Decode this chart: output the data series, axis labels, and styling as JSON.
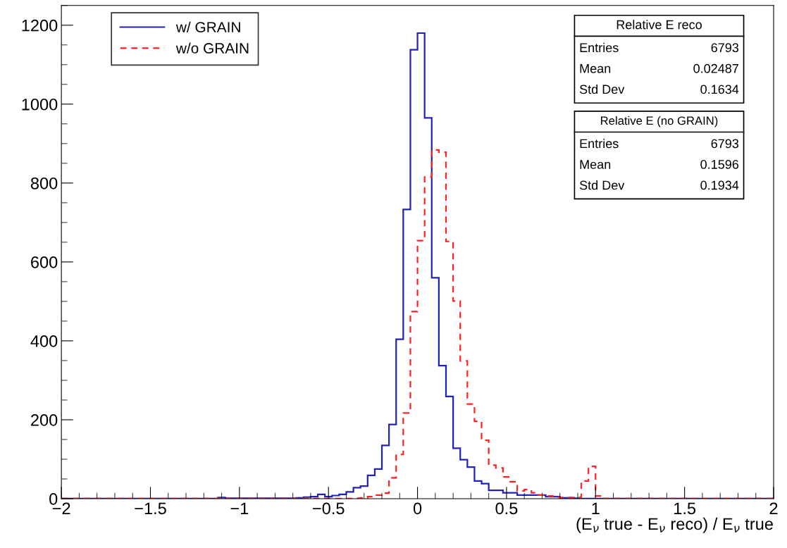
{
  "chart_data": {
    "type": "histogram",
    "xlabel": "(E$_{ν}$ true - E$_{ν}$ reco) / E$_{ν}$ true",
    "bins": [
      -2.0,
      -1.96,
      -1.92,
      -1.88,
      -1.84,
      -1.8,
      -1.76,
      -1.72,
      -1.68,
      -1.64,
      -1.6,
      -1.56,
      -1.52,
      -1.48,
      -1.44,
      -1.4,
      -1.36,
      -1.32,
      -1.28,
      -1.24,
      -1.2,
      -1.16,
      -1.12,
      -1.08,
      -1.04,
      -1.0,
      -0.96,
      -0.92,
      -0.88,
      -0.84,
      -0.8,
      -0.76,
      -0.72,
      -0.68,
      -0.64,
      -0.6,
      -0.56,
      -0.52,
      -0.48,
      -0.44,
      -0.4,
      -0.36,
      -0.32,
      -0.28,
      -0.24,
      -0.2,
      -0.16,
      -0.12,
      -0.08,
      -0.04,
      0.0,
      0.04,
      0.08,
      0.12,
      0.16,
      0.2,
      0.24,
      0.28,
      0.32,
      0.36,
      0.4,
      0.44,
      0.48,
      0.52,
      0.56,
      0.6,
      0.64,
      0.68,
      0.72,
      0.76,
      0.8,
      0.84,
      0.88,
      0.92,
      0.96,
      1.0,
      1.04,
      1.08,
      1.12,
      1.16,
      1.2,
      1.24,
      1.28,
      1.32,
      1.36,
      1.4,
      1.44,
      1.48,
      1.52,
      1.56,
      1.6,
      1.64,
      1.68,
      1.72,
      1.76,
      1.8,
      1.84,
      1.88,
      1.92,
      1.96,
      2.0
    ],
    "series": [
      {
        "name": "w/ GRAIN",
        "color": "#2222bb",
        "line_style": "solid",
        "values": [
          0,
          0,
          0,
          0,
          0,
          0,
          0,
          0,
          0,
          0,
          0,
          0,
          0,
          0,
          0,
          0,
          0,
          0,
          0,
          0,
          0,
          0,
          3,
          1,
          1,
          1,
          1,
          1,
          1,
          1,
          1,
          1,
          1,
          2,
          4,
          5,
          11,
          5,
          8,
          11,
          17,
          28,
          32,
          59,
          75,
          135,
          188,
          404,
          733,
          1138,
          1180,
          965,
          560,
          337,
          259,
          128,
          99,
          80,
          45,
          38,
          21,
          21,
          15,
          15,
          9,
          9,
          9,
          9,
          5,
          5,
          2,
          2,
          1,
          0,
          0,
          0,
          0,
          0,
          0,
          0,
          0,
          0,
          0,
          0,
          0,
          0,
          0,
          0,
          0,
          0,
          0,
          0,
          0,
          0,
          0,
          0,
          0,
          0,
          0,
          0
        ]
      },
      {
        "name": "w/o GRAIN",
        "color": "#ff2222",
        "line_style": "dashed",
        "values": [
          0,
          0,
          0,
          0,
          0,
          0,
          0,
          0,
          0,
          0,
          0,
          0,
          0,
          0,
          0,
          0,
          0,
          0,
          0,
          0,
          0,
          0,
          0,
          0,
          0,
          0,
          0,
          0,
          0,
          0,
          0,
          0,
          0,
          0,
          0,
          0,
          0,
          0,
          0,
          0,
          0,
          1,
          2,
          5,
          9,
          14,
          53,
          112,
          217,
          474,
          654,
          815,
          884,
          878,
          652,
          501,
          349,
          240,
          196,
          148,
          85,
          78,
          55,
          43,
          20,
          23,
          15,
          9,
          7,
          4,
          3,
          3,
          3,
          45,
          82,
          7,
          0,
          0,
          0,
          0,
          0,
          0,
          0,
          0,
          0,
          0,
          0,
          0,
          0,
          0,
          0,
          0,
          0,
          0,
          0,
          0,
          0,
          0,
          0,
          0
        ]
      }
    ],
    "xlim": [
      -2,
      2
    ],
    "xticks": [
      {
        "value": -2,
        "label": "−2"
      },
      {
        "value": -1.5,
        "label": "−1.5"
      },
      {
        "value": -1,
        "label": "−1"
      },
      {
        "value": -0.5,
        "label": "−0.5"
      },
      {
        "value": 0,
        "label": "0"
      },
      {
        "value": 0.5,
        "label": "0.5"
      },
      {
        "value": 1,
        "label": "1"
      },
      {
        "value": 1.5,
        "label": "1.5"
      },
      {
        "value": 2,
        "label": "2"
      }
    ],
    "ylim": [
      0,
      1250
    ],
    "yticks": [
      0,
      200,
      400,
      600,
      800,
      1000,
      1200
    ],
    "grid": false,
    "legend": "top left",
    "annotations": [
      "Relative E reco",
      "Entries",
      "6793",
      "Mean",
      "0.02487",
      "Std Dev",
      "0.1634",
      "Relative E (no GRAIN)",
      "Entries",
      "6793",
      "Mean",
      "0.1596",
      "Std Dev",
      "0.1934"
    ]
  }
}
